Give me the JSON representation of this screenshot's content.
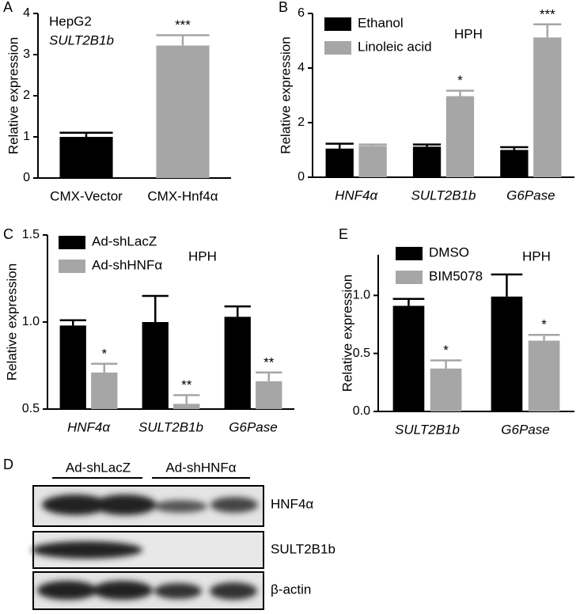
{
  "chart_data": [
    {
      "type": "bar",
      "panel": "A",
      "y_label": "Relative expression",
      "texts": [
        "HepG2",
        "SULT2B1b"
      ],
      "categories": [
        "CMX-Vector",
        "CMX-Hnf4α"
      ],
      "series": [
        {
          "colors": [
            "#000000",
            "#a6a6a6"
          ],
          "values": [
            1.0,
            3.22
          ],
          "errors": [
            0.1,
            0.25
          ],
          "significance": [
            null,
            "***"
          ]
        }
      ],
      "ylim": [
        0,
        4
      ],
      "yticks": [
        0,
        1,
        2,
        3,
        4
      ]
    },
    {
      "type": "bar",
      "panel": "B",
      "y_label": "Relative expression",
      "texts": [
        "HPH"
      ],
      "categories": [
        "HNF4α",
        "SULT2B1b",
        "G6Pase"
      ],
      "series": [
        {
          "name": "Ethanol",
          "color": "#000000",
          "values": [
            1.05,
            1.12,
            1.0
          ],
          "errors": [
            0.18,
            0.08,
            0.1
          ],
          "significance": [
            null,
            null,
            null
          ]
        },
        {
          "name": "Linoleic acid",
          "color": "#a6a6a6",
          "values": [
            1.15,
            2.97,
            5.12
          ],
          "errors": [
            0.05,
            0.2,
            0.48
          ],
          "significance": [
            null,
            "*",
            "***"
          ]
        }
      ],
      "ylim": [
        0,
        6
      ],
      "yticks": [
        0,
        2,
        4,
        6
      ]
    },
    {
      "type": "bar",
      "panel": "C",
      "y_label": "Relative expression",
      "texts": [
        "HPH"
      ],
      "categories": [
        "HNF4α",
        "SULT2B1b",
        "G6Pase"
      ],
      "series": [
        {
          "name": "Ad-shLacZ",
          "color": "#000000",
          "values": [
            0.98,
            1.0,
            1.03
          ],
          "errors": [
            0.03,
            0.15,
            0.06
          ],
          "significance": [
            null,
            null,
            null
          ]
        },
        {
          "name": "Ad-shHNFα",
          "color": "#a6a6a6",
          "values": [
            0.71,
            0.53,
            0.66
          ],
          "errors": [
            0.05,
            0.05,
            0.05
          ],
          "significance": [
            "*",
            "**",
            "**"
          ]
        }
      ],
      "ylim": [
        0.5,
        1.5
      ],
      "yticks": [
        0.5,
        {
          "value": 1,
          "label": "1.0"
        },
        1.5
      ]
    },
    {
      "type": "bar",
      "panel": "E",
      "y_label": "Relative expression",
      "texts": [
        "HPH"
      ],
      "categories": [
        "SULT2B1b",
        "G6Pase"
      ],
      "series": [
        {
          "name": "DMSO",
          "color": "#000000",
          "values": [
            0.91,
            0.99
          ],
          "errors": [
            0.06,
            0.19
          ],
          "significance": [
            null,
            null
          ]
        },
        {
          "name": "BIM5078",
          "color": "#a6a6a6",
          "values": [
            0.37,
            0.61
          ],
          "errors": [
            0.07,
            0.05
          ],
          "significance": [
            "*",
            "*"
          ]
        }
      ],
      "ylim": [
        0,
        1.35
      ],
      "yticks": [
        {
          "value": 0,
          "label": "0.0"
        },
        0.5,
        {
          "value": 1,
          "label": "1.0"
        }
      ]
    }
  ],
  "blot": {
    "panel": "D",
    "groups": [
      "Ad-shLacZ",
      "Ad-shHNFα"
    ],
    "bands": [
      "HNF4α",
      "SULT2B1b",
      "β-actin"
    ]
  }
}
